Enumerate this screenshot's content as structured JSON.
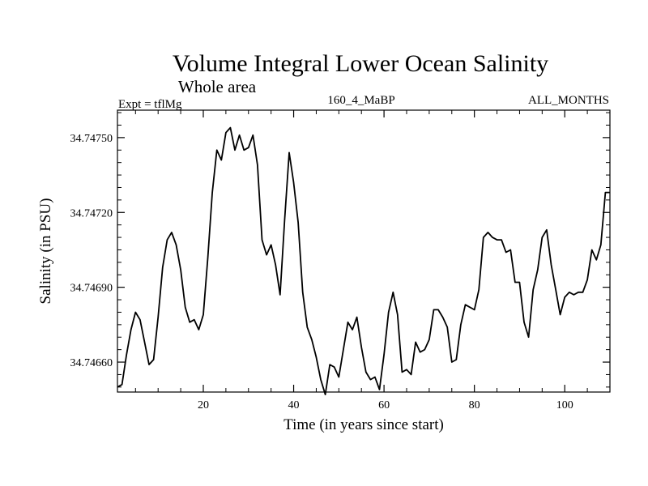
{
  "chart_data": {
    "type": "line",
    "title": "Volume Integral Lower Ocean Salinity",
    "subtitle": "Whole area",
    "header_left": "Expt = tflMg",
    "header_center": "160_4_MaBP",
    "header_right": "ALL_MONTHS",
    "xlabel": "Time (in years since start)",
    "ylabel": "Salinity (in PSU)",
    "xlim": [
      1,
      110
    ],
    "ylim": [
      34.74648,
      34.74761
    ],
    "xticks": [
      20,
      40,
      60,
      80,
      100
    ],
    "xtick_labels": [
      "20",
      "40",
      "60",
      "80",
      "100"
    ],
    "yticks": [
      34.7466,
      34.7469,
      34.7472,
      34.7475
    ],
    "ytick_labels": [
      "34.74660",
      "34.74690",
      "34.74720",
      "34.74750"
    ],
    "grid": false,
    "series": [
      {
        "name": "Salinity",
        "color": "#000000",
        "x": [
          1,
          2,
          3,
          4,
          5,
          6,
          7,
          8,
          9,
          10,
          11,
          12,
          13,
          14,
          15,
          16,
          17,
          18,
          19,
          20,
          21,
          22,
          23,
          24,
          25,
          26,
          27,
          28,
          29,
          30,
          31,
          32,
          33,
          34,
          35,
          36,
          37,
          38,
          39,
          40,
          41,
          42,
          43,
          44,
          45,
          46,
          47,
          48,
          49,
          50,
          51,
          52,
          53,
          54,
          55,
          56,
          57,
          58,
          59,
          60,
          61,
          62,
          63,
          64,
          65,
          66,
          67,
          68,
          69,
          70,
          71,
          72,
          73,
          74,
          75,
          76,
          77,
          78,
          79,
          80,
          81,
          82,
          83,
          84,
          85,
          86,
          87,
          88,
          89,
          90,
          91,
          92,
          93,
          94,
          95,
          96,
          97,
          98,
          99,
          100,
          101,
          102,
          103,
          104,
          105,
          106,
          107,
          108,
          109,
          110
        ],
        "values": [
          34.7465,
          34.74651,
          34.74663,
          34.74673,
          34.7468,
          34.74677,
          34.74668,
          34.74659,
          34.74661,
          34.74678,
          34.74698,
          34.74709,
          34.74712,
          34.74707,
          34.74697,
          34.74682,
          34.74676,
          34.74677,
          34.74673,
          34.74679,
          34.74702,
          34.74728,
          34.74745,
          34.74741,
          34.74752,
          34.74754,
          34.74745,
          34.74751,
          34.74745,
          34.74746,
          34.74751,
          34.74739,
          34.74709,
          34.74703,
          34.74707,
          34.74699,
          34.74687,
          34.74717,
          34.74744,
          34.74732,
          34.74716,
          34.74688,
          34.74674,
          34.74669,
          34.74662,
          34.74653,
          34.74647,
          34.74659,
          34.74658,
          34.74654,
          34.74665,
          34.74676,
          34.74673,
          34.74678,
          34.74666,
          34.74656,
          34.74653,
          34.74654,
          34.74649,
          34.74663,
          34.7468,
          34.74688,
          34.74679,
          34.74656,
          34.74657,
          34.74655,
          34.74668,
          34.74664,
          34.74665,
          34.74669,
          34.74681,
          34.74681,
          34.74678,
          34.74674,
          34.7466,
          34.74661,
          34.74675,
          34.74683,
          34.74682,
          34.74681,
          34.74689,
          34.7471,
          34.74712,
          34.7471,
          34.74709,
          34.74709,
          34.74704,
          34.74705,
          34.74692,
          34.74692,
          34.74676,
          34.7467,
          34.74689,
          34.74697,
          34.7471,
          34.74713,
          34.74699,
          34.74689,
          34.74679,
          34.74686,
          34.74688,
          34.74687,
          34.74688,
          34.74688,
          34.74693,
          34.74705,
          34.74701,
          34.74707,
          34.74728,
          34.74728
        ]
      }
    ]
  }
}
